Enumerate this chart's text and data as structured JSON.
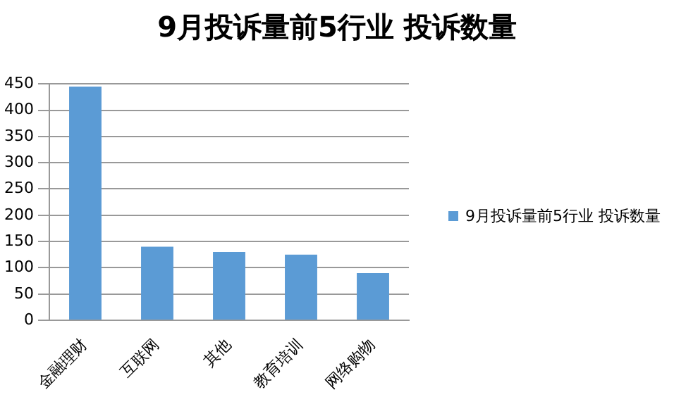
{
  "chart_data": {
    "type": "bar",
    "title": "9月投诉量前5行业 投诉数量",
    "categories": [
      "金融理财",
      "互联网",
      "其他",
      "教育培训",
      "网络购物"
    ],
    "series": [
      {
        "name": "9月投诉量前5行业 投诉数量",
        "color": "#5b9bd5",
        "values": [
          445,
          140,
          130,
          125,
          90
        ]
      }
    ],
    "ylim": [
      0,
      450
    ],
    "yticks": [
      0,
      50,
      100,
      150,
      200,
      250,
      300,
      350,
      400,
      450
    ],
    "grid": "y",
    "legend": "right"
  }
}
